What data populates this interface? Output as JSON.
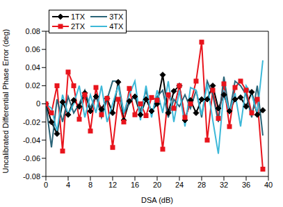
{
  "chart_data": {
    "type": "line",
    "x_label": "DSA (dB)",
    "y_label": "Uncalibrated Differential Phase Error (deg)",
    "x": [
      0,
      1,
      2,
      3,
      4,
      5,
      6,
      7,
      8,
      9,
      10,
      11,
      12,
      13,
      14,
      15,
      16,
      17,
      18,
      19,
      20,
      21,
      22,
      23,
      24,
      25,
      26,
      27,
      28,
      29,
      30,
      31,
      32,
      33,
      34,
      35,
      36,
      37,
      38,
      39
    ],
    "xlim": [
      0,
      40
    ],
    "xticks": [
      0,
      4,
      8,
      12,
      16,
      20,
      24,
      28,
      32,
      36,
      40
    ],
    "ylim": [
      -0.08,
      0.08
    ],
    "yticks": [
      -0.08,
      -0.06,
      -0.04,
      -0.02,
      0,
      0.02,
      0.04,
      0.06,
      0.08
    ],
    "grid": false,
    "legend": "upper left",
    "series": [
      {
        "name": "1TX",
        "color": "#000000",
        "marker": "diamond",
        "values": [
          0,
          -0.02,
          -0.033,
          0.002,
          -0.012,
          0.004,
          -0.003,
          0.012,
          -0.008,
          0.008,
          -0.006,
          0.006,
          -0.01,
          0.024,
          -0.018,
          0.003,
          0.008,
          -0.012,
          0.005,
          -0.008,
          0,
          0.032,
          -0.01,
          0.014,
          0.02,
          -0.018,
          0.004,
          -0.01,
          0.005,
          0.005,
          0.02,
          -0.005,
          0.01,
          -0.008,
          0.005,
          0.007,
          -0.003,
          0.013,
          -0.012,
          -0.007
        ]
      },
      {
        "name": "2TX",
        "color": "#e8141c",
        "marker": "square",
        "values": [
          0,
          -0.01,
          0.02,
          -0.052,
          0.035,
          0.02,
          -0.017,
          0.01,
          -0.03,
          0.018,
          -0.012,
          0.006,
          -0.048,
          0.005,
          -0.02,
          0.017,
          -0.012,
          0,
          -0.013,
          0.007,
          0.004,
          -0.05,
          0.01,
          -0.005,
          0.02,
          -0.015,
          0,
          0.025,
          0.068,
          -0.04,
          0.015,
          -0.016,
          0.022,
          -0.025,
          0.018,
          0.025,
          0.015,
          -0.01,
          0.005,
          -0.072
        ]
      },
      {
        "name": "3TX",
        "color": "#2a6478",
        "marker": "none",
        "values": [
          0,
          -0.048,
          0.005,
          -0.02,
          0.008,
          -0.01,
          0,
          0.015,
          -0.005,
          0.01,
          -0.015,
          0.005,
          0.025,
          0.025,
          -0.01,
          0,
          0.01,
          -0.008,
          0.015,
          -0.012,
          0.008,
          0.015,
          -0.015,
          0.005,
          -0.003,
          0.01,
          -0.005,
          0.015,
          -0.015,
          0.025,
          0.01,
          -0.02,
          0.03,
          -0.01,
          0.025,
          0.02,
          0.01,
          -0.015,
          0.02,
          -0.035
        ]
      },
      {
        "name": "4TX",
        "color": "#3cb8d8",
        "marker": "none",
        "values": [
          0,
          -0.005,
          -0.03,
          0.01,
          -0.012,
          0,
          0.02,
          -0.015,
          0.01,
          -0.01,
          0.02,
          -0.02,
          0,
          0.02,
          -0.01,
          0.01,
          0.025,
          -0.018,
          0.02,
          -0.015,
          0.015,
          -0.01,
          0.025,
          -0.02,
          0.015,
          -0.025,
          0.018,
          0.015,
          -0.012,
          0.022,
          -0.018,
          -0.055,
          0.015,
          -0.01,
          0.012,
          -0.025,
          0.02,
          0.01,
          -0.01,
          0.048
        ]
      }
    ]
  }
}
